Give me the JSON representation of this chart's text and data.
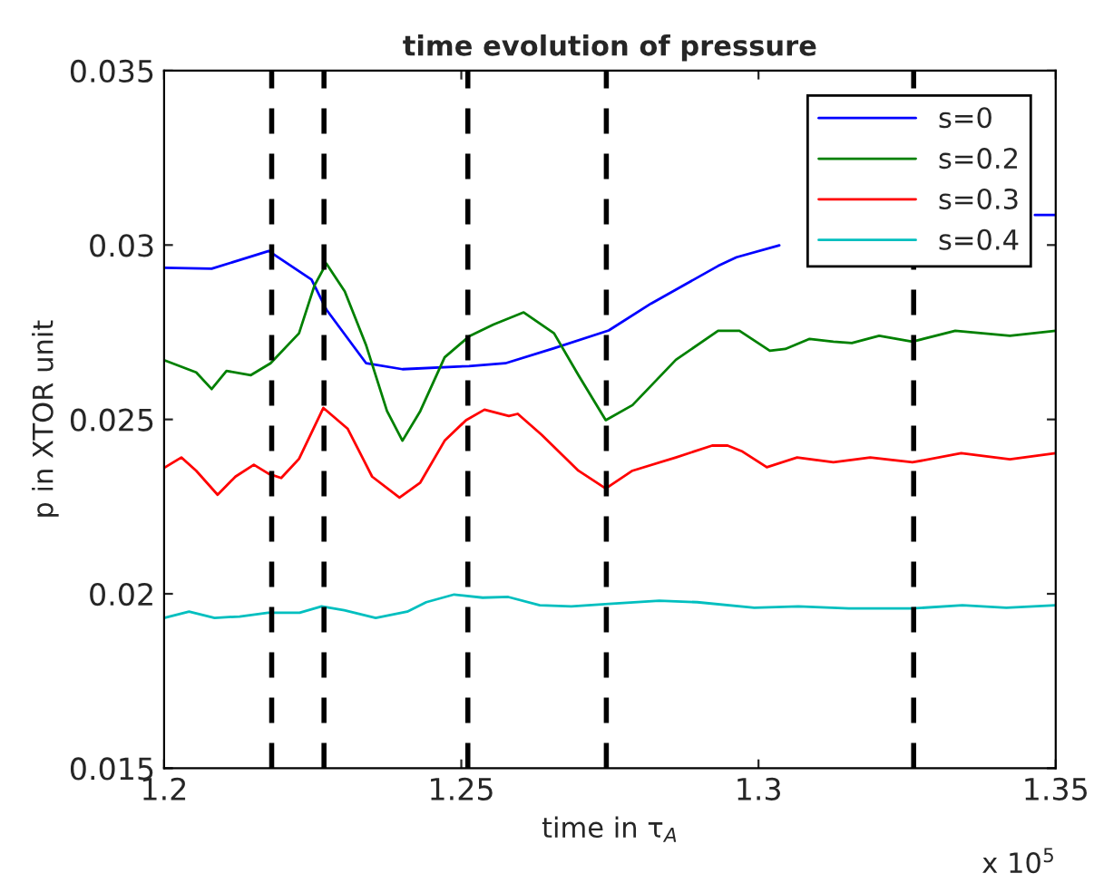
{
  "chart_data": {
    "type": "line",
    "title": "time evolution of pressure",
    "xlabel": "time in τ$_{A}$",
    "ylabel": "p in XTOR unit",
    "annotations": [
      "x 10$^{5}$"
    ],
    "xlim": [
      1.2,
      1.35
    ],
    "xticks": [
      1.2,
      1.25,
      1.3,
      1.35
    ],
    "ylim": [
      0.015,
      0.035
    ],
    "yticks": [
      0.015,
      0.02,
      0.025,
      0.03,
      0.035
    ],
    "grid": false,
    "legend": "top right",
    "series": [
      {
        "name": "s=0",
        "color": "#0000ff",
        "x": [
          1.2,
          1.208,
          1.2176,
          1.2248,
          1.2273,
          1.234,
          1.2401,
          1.2513,
          1.2574,
          1.2656,
          1.2748,
          1.2819,
          1.2932,
          1.2963,
          1.3035,
          1.3147,
          1.33,
          1.3465,
          1.35
        ],
        "values": [
          0.02935,
          0.02932,
          0.02983,
          0.02901,
          0.02815,
          0.02661,
          0.02644,
          0.02653,
          0.02661,
          0.02704,
          0.02755,
          0.02832,
          0.0294,
          0.02965,
          0.02999,
          null,
          null,
          0.03086,
          0.03086
        ]
      },
      {
        "name": "s=0.2",
        "color": "#008000",
        "x": [
          1.2,
          1.2054,
          1.208,
          1.2105,
          1.2146,
          1.2179,
          1.2227,
          1.2253,
          1.2273,
          1.2304,
          1.234,
          1.2375,
          1.2401,
          1.2431,
          1.2472,
          1.2513,
          1.2554,
          1.2605,
          1.2656,
          1.2697,
          1.2743,
          1.2788,
          1.2861,
          1.2932,
          1.2968,
          1.3019,
          1.3045,
          1.3086,
          1.3126,
          1.3157,
          1.3203,
          1.3259,
          1.3331,
          1.3423,
          1.35
        ],
        "values": [
          0.0267,
          0.02635,
          0.02587,
          0.02639,
          0.02627,
          0.02661,
          0.02747,
          0.02884,
          0.02947,
          0.02867,
          0.02712,
          0.02524,
          0.02439,
          0.02524,
          0.02678,
          0.02738,
          0.02772,
          0.02807,
          0.02747,
          0.02627,
          0.02498,
          0.02541,
          0.02671,
          0.02754,
          0.02754,
          0.02697,
          0.02702,
          0.02731,
          0.02723,
          0.02719,
          0.0274,
          0.02723,
          0.02754,
          0.0274,
          0.02754
        ]
      },
      {
        "name": "s=0.3",
        "color": "#ff0000",
        "x": [
          1.2,
          1.2029,
          1.2054,
          1.209,
          1.212,
          1.2151,
          1.2176,
          1.2197,
          1.2227,
          1.2268,
          1.2309,
          1.235,
          1.2396,
          1.2431,
          1.2472,
          1.2508,
          1.2539,
          1.258,
          1.2595,
          1.2635,
          1.2697,
          1.2743,
          1.2788,
          1.2861,
          1.2922,
          1.2948,
          1.2973,
          1.3014,
          1.3065,
          1.3126,
          1.3188,
          1.3259,
          1.3341,
          1.3423,
          1.35
        ],
        "values": [
          0.02361,
          0.02391,
          0.02353,
          0.02284,
          0.02336,
          0.0237,
          0.02344,
          0.02332,
          0.02387,
          0.02533,
          0.02473,
          0.02336,
          0.02276,
          0.02319,
          0.02439,
          0.02498,
          0.02528,
          0.0251,
          0.02516,
          0.02456,
          0.02353,
          0.02302,
          0.02353,
          0.02391,
          0.02425,
          0.02425,
          0.02408,
          0.02363,
          0.02391,
          0.02377,
          0.02391,
          0.02377,
          0.02403,
          0.02386,
          0.02403
        ]
      },
      {
        "name": "s=0.4",
        "color": "#00bfbf",
        "x": [
          1.2,
          1.2042,
          1.2085,
          1.2127,
          1.2175,
          1.2228,
          1.2265,
          1.2303,
          1.2356,
          1.2409,
          1.2441,
          1.2488,
          1.2536,
          1.2579,
          1.2632,
          1.2685,
          1.2748,
          1.2833,
          1.2897,
          1.2993,
          1.3067,
          1.3152,
          1.3258,
          1.3343,
          1.3417,
          1.35
        ],
        "values": [
          0.01931,
          0.01949,
          0.01931,
          0.01935,
          0.01946,
          0.01946,
          0.01964,
          0.01953,
          0.01931,
          0.01949,
          0.01976,
          0.01998,
          0.01989,
          0.01991,
          0.01967,
          0.01964,
          0.01971,
          0.0198,
          0.01976,
          0.0196,
          0.01964,
          0.01958,
          0.01958,
          0.01967,
          0.0196,
          0.01967
        ]
      }
    ],
    "ref_lines": [
      {
        "axis": "x",
        "value": 1.2181,
        "color": "#000000",
        "line_style": "dashed"
      },
      {
        "axis": "x",
        "value": 1.2269,
        "color": "#000000",
        "line_style": "dashed"
      },
      {
        "axis": "x",
        "value": 1.2511,
        "color": "#000000",
        "line_style": "dashed"
      },
      {
        "axis": "x",
        "value": 1.2744,
        "color": "#000000",
        "line_style": "dashed"
      },
      {
        "axis": "x",
        "value": 1.3261,
        "color": "#000000",
        "line_style": "dashed"
      }
    ]
  }
}
